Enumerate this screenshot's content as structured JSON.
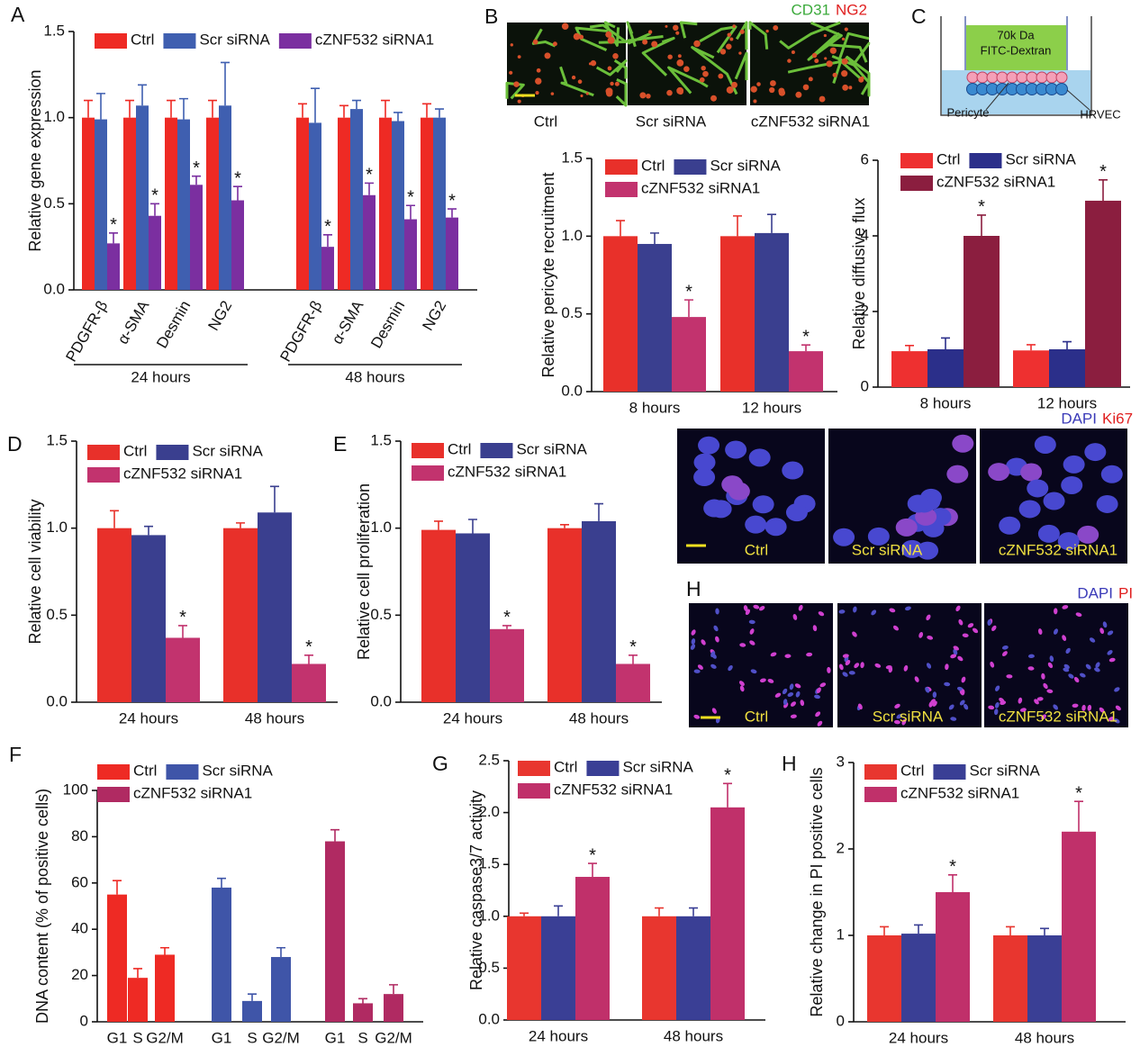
{
  "chart_data": [
    {
      "type": "bar",
      "letter": "A",
      "y_label": "Relative gene expression",
      "categories": [
        "PDGFR-β",
        "α-SMA",
        "Desmin",
        "NG2",
        "PDGFR-β",
        "α-SMA",
        "Desmin",
        "NG2"
      ],
      "groups": [
        "24 hours",
        "48 hours"
      ],
      "ylim": [
        0,
        1.5
      ],
      "yticks": [
        {
          "value": 0,
          "label": "0.0"
        },
        0.5,
        {
          "value": 1,
          "label": "1.0"
        },
        1.5
      ],
      "series": [
        {
          "name": "Ctrl",
          "color": "#ee2a24",
          "values": [
            1,
            1,
            1,
            1,
            1,
            1,
            1,
            1
          ],
          "errors": [
            0.1,
            0.1,
            0.1,
            0.1,
            0.08,
            0.07,
            0.1,
            0.08
          ]
        },
        {
          "name": "Scr siRNA",
          "color": "#3f5fb0",
          "values": [
            0.99,
            1.07,
            0.99,
            1.07,
            0.97,
            1.05,
            0.98,
            1.0
          ],
          "errors": [
            0.15,
            0.12,
            0.12,
            0.25,
            0.2,
            0.05,
            0.05,
            0.05
          ]
        },
        {
          "name": "cZNF532 siRNA1",
          "color": "#7b2fa0",
          "mark": "*",
          "values": [
            0.27,
            0.43,
            0.61,
            0.52,
            0.25,
            0.55,
            0.41,
            0.42
          ],
          "errors": [
            0.06,
            0.07,
            0.05,
            0.08,
            0.07,
            0.07,
            0.08,
            0.05
          ]
        }
      ]
    },
    {
      "type": "bar",
      "y_label": "Relative pericyte recruitment",
      "categories": [
        "8 hours",
        "12 hours"
      ],
      "ylim": [
        0,
        1.5
      ],
      "yticks": [
        {
          "value": 0,
          "label": "0.0"
        },
        0.5,
        {
          "value": 1,
          "label": "1.0"
        },
        1.5
      ],
      "series": [
        {
          "name": "Ctrl",
          "color": "#e8302a",
          "values": [
            1.0,
            1.0
          ],
          "errors": [
            0.1,
            0.13
          ]
        },
        {
          "name": "Scr siRNA",
          "color": "#3a3f8f",
          "values": [
            0.95,
            1.02
          ],
          "errors": [
            0.07,
            0.12
          ]
        },
        {
          "name": "cZNF532 siRNA1",
          "color": "#c2336e",
          "mark": "*",
          "values": [
            0.48,
            0.26
          ],
          "errors": [
            0.11,
            0.04
          ]
        }
      ]
    },
    {
      "type": "bar",
      "y_label": "Relative diffusive flux",
      "categories": [
        "8 hours",
        "12 hours"
      ],
      "ylim": [
        0,
        6
      ],
      "yticks": [
        0,
        2,
        4,
        6
      ],
      "series": [
        {
          "name": "Ctrl",
          "color": "#ee3030",
          "values": [
            0.95,
            0.97
          ],
          "errors": [
            0.15,
            0.15
          ]
        },
        {
          "name": "Scr siRNA",
          "color": "#2b2f8a",
          "values": [
            1.0,
            1.0
          ],
          "errors": [
            0.3,
            0.2
          ]
        },
        {
          "name": "cZNF532 siRNA1",
          "color": "#8b1e3f",
          "mark": "*",
          "values": [
            4.0,
            4.93
          ],
          "errors": [
            0.55,
            0.55
          ]
        }
      ]
    },
    {
      "type": "bar",
      "letter": "D",
      "y_label": "Relative cell viability",
      "categories": [
        "24 hours",
        "48 hours"
      ],
      "ylim": [
        0,
        1.5
      ],
      "yticks": [
        {
          "value": 0,
          "label": "0.0"
        },
        0.5,
        {
          "value": 1,
          "label": "1.0"
        },
        1.5
      ],
      "series": [
        {
          "name": "Ctrl",
          "color": "#e8302a",
          "values": [
            1.0,
            1.0
          ],
          "errors": [
            0.1,
            0.03
          ]
        },
        {
          "name": "Scr siRNA",
          "color": "#3a3f8f",
          "values": [
            0.96,
            1.09
          ],
          "errors": [
            0.05,
            0.15
          ]
        },
        {
          "name": "cZNF532 siRNA1",
          "color": "#c2336e",
          "mark": "*",
          "values": [
            0.37,
            0.22
          ],
          "errors": [
            0.07,
            0.05
          ]
        }
      ]
    },
    {
      "type": "bar",
      "letter": "E",
      "y_label": "Relative cell proliferation",
      "categories": [
        "24 hours",
        "48 hours"
      ],
      "ylim": [
        0,
        1.5
      ],
      "yticks": [
        {
          "value": 0,
          "label": "0.0"
        },
        0.5,
        {
          "value": 1,
          "label": "1.0"
        },
        1.5
      ],
      "series": [
        {
          "name": "Ctrl",
          "color": "#e8302a",
          "values": [
            0.99,
            1.0
          ],
          "errors": [
            0.05,
            0.02
          ]
        },
        {
          "name": "Scr siRNA",
          "color": "#3a3f8f",
          "values": [
            0.97,
            1.04
          ],
          "errors": [
            0.08,
            0.1
          ]
        },
        {
          "name": "cZNF532 siRNA1",
          "color": "#c2336e",
          "mark": "*",
          "values": [
            0.42,
            0.22
          ],
          "errors": [
            0.02,
            0.05
          ]
        }
      ]
    },
    {
      "type": "bar",
      "letter": "F",
      "y_label": "DNA content (% of positive cells)",
      "categories": [
        "G1",
        "S",
        "G2/M",
        "G1",
        "S",
        "G2/M",
        "G1",
        "S",
        "G2/M"
      ],
      "ylim": [
        0,
        100
      ],
      "yticks": [
        0,
        20,
        40,
        60,
        80,
        100
      ],
      "series": [
        {
          "name": "Ctrl",
          "color": "#ee2a24",
          "values": [
            55,
            19,
            29,
            null,
            null,
            null,
            null,
            null,
            null
          ],
          "errors": [
            6,
            4,
            3,
            null,
            null,
            null,
            null,
            null,
            null
          ]
        },
        {
          "name": "Scr siRNA",
          "color": "#3f55a8",
          "values": [
            null,
            null,
            null,
            58,
            9,
            28,
            null,
            null,
            null
          ],
          "errors": [
            null,
            null,
            null,
            4,
            3,
            4,
            null,
            null,
            null
          ]
        },
        {
          "name": "cZNF532 siRNA1",
          "color": "#b02a62",
          "values": [
            null,
            null,
            null,
            null,
            null,
            null,
            78,
            8,
            12
          ],
          "errors": [
            null,
            null,
            null,
            null,
            null,
            null,
            5,
            2,
            4
          ]
        }
      ]
    },
    {
      "type": "bar",
      "letter": "G",
      "y_label": "Relative caspase3/7 activity",
      "categories": [
        "24 hours",
        "48 hours"
      ],
      "ylim": [
        0,
        2.5
      ],
      "yticks": [
        {
          "value": 0,
          "label": "0.0"
        },
        0.5,
        {
          "value": 1,
          "label": "1.0"
        },
        1.5,
        {
          "value": 2,
          "label": "2.0"
        },
        2.5
      ],
      "series": [
        {
          "name": "Ctrl",
          "color": "#e8362f",
          "values": [
            1.0,
            1.0
          ],
          "errors": [
            0.03,
            0.08
          ]
        },
        {
          "name": "Scr siRNA",
          "color": "#3a3f95",
          "values": [
            1.0,
            1.0
          ],
          "errors": [
            0.1,
            0.08
          ]
        },
        {
          "name": "cZNF532 siRNA1",
          "color": "#c0306a",
          "mark": "*",
          "values": [
            1.38,
            2.05
          ],
          "errors": [
            0.13,
            0.23
          ]
        }
      ]
    },
    {
      "type": "bar",
      "letter": "H",
      "y_label": "Relative change in PI positive cells",
      "categories": [
        "24 hours",
        "48 hours"
      ],
      "ylim": [
        0,
        3
      ],
      "yticks": [
        0,
        1,
        2,
        3
      ],
      "series": [
        {
          "name": "Ctrl",
          "color": "#e8362f",
          "values": [
            1.0,
            1.0
          ],
          "errors": [
            0.1,
            0.1
          ]
        },
        {
          "name": "Scr siRNA",
          "color": "#3a3f95",
          "values": [
            1.02,
            1.0
          ],
          "errors": [
            0.1,
            0.08
          ]
        },
        {
          "name": "cZNF532 siRNA1",
          "color": "#c0306a",
          "mark": "*",
          "values": [
            1.5,
            2.2
          ],
          "errors": [
            0.2,
            0.35
          ]
        }
      ]
    }
  ],
  "panels": {
    "vessels": {
      "letter": "B",
      "channels": [
        "CD31",
        "NG2"
      ],
      "labels": [
        "Ctrl",
        "Scr siRNA",
        "cZNF532 siRNA1"
      ]
    },
    "transwell": {
      "letter": "C",
      "dextran": [
        "70k Da",
        "FITC-Dextran"
      ],
      "pericyte": "Pericyte",
      "endothelium": "HRVEC"
    },
    "ki67": {
      "channels": [
        "DAPI",
        "Ki67"
      ],
      "labels": [
        "Ctrl",
        "Scr siRNA",
        "cZNF532 siRNA1"
      ]
    },
    "pi": {
      "letter": "H",
      "channels": [
        "DAPI",
        "PI"
      ],
      "labels": [
        "Ctrl",
        "Scr siRNA",
        "cZNF532 siRNA1"
      ]
    }
  }
}
